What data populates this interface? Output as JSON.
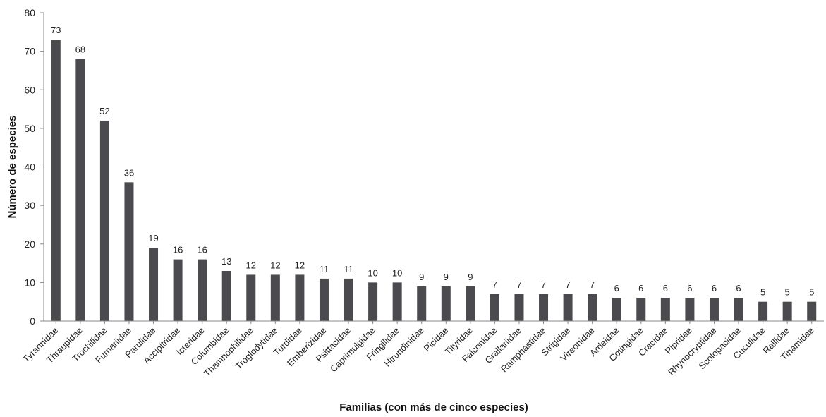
{
  "chart_data": {
    "type": "bar",
    "xlabel": "Familias (con más de cinco especies)",
    "ylabel": "Número de especies",
    "ylim": [
      0,
      80
    ],
    "yticks": [
      0,
      10,
      20,
      30,
      40,
      50,
      60,
      70,
      80
    ],
    "grid": false,
    "legend": "none",
    "bar_color": "#4a4a4f",
    "categories": [
      "Tyrannidae",
      "Thraupidae",
      "Trochilidae",
      "Furnariidae",
      "Parulidae",
      "Accipitridae",
      "Icteridae",
      "Columbidae",
      "Thamnophilidae",
      "Troglodytidae",
      "Turdidae",
      "Emberizidae",
      "Psittacidae",
      "Caprimulgidae",
      "Fringilidae",
      "Hirundinidae",
      "Picidae",
      "Tityridae",
      "Falconidae",
      "Grallariidae",
      "Ramphastidae",
      "Strigidae",
      "Vireonidae",
      "Ardeidae",
      "Cotingidae",
      "Cracidae",
      "Pipridae",
      "Rhynocryptidae",
      "Scolopacidae",
      "Cuculidae",
      "Rallidae",
      "Tinamidae"
    ],
    "values": [
      73,
      68,
      52,
      36,
      19,
      16,
      16,
      13,
      12,
      12,
      12,
      11,
      11,
      10,
      10,
      9,
      9,
      9,
      7,
      7,
      7,
      7,
      7,
      6,
      6,
      6,
      6,
      6,
      6,
      5,
      5,
      5
    ]
  }
}
